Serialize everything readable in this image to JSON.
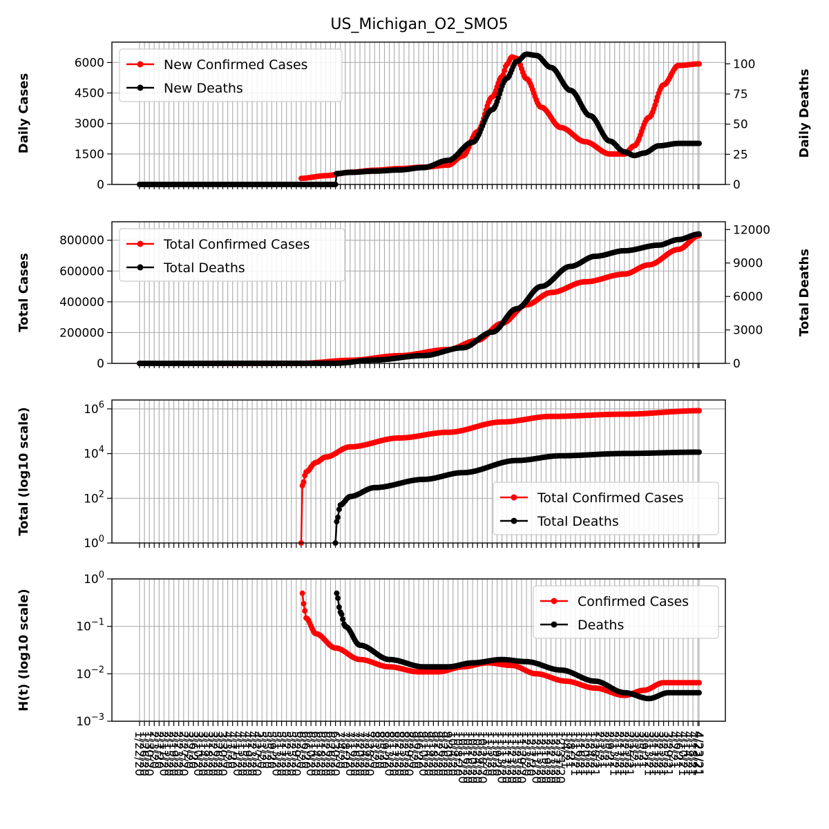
{
  "title": "US_Michigan_O2_SMO5",
  "colors": {
    "cases": "#ff0000",
    "deaths": "#000000",
    "grid": "#b0b0b0"
  },
  "x_dates": [
    "1/22/20",
    "1/26/20",
    "1/30/20",
    "2/3/20",
    "2/7/20",
    "2/11/20",
    "2/15/20",
    "2/19/20",
    "2/23/20",
    "2/27/20",
    "3/2/20",
    "3/6/20",
    "3/10/20",
    "3/14/20",
    "3/18/20",
    "3/22/20",
    "3/26/20",
    "3/30/20",
    "4/3/20",
    "4/7/20",
    "4/11/20",
    "4/15/20",
    "4/19/20",
    "4/23/20",
    "4/27/20",
    "5/1/20",
    "5/5/20",
    "5/9/20",
    "5/13/20",
    "5/17/20",
    "5/21/20",
    "5/25/20",
    "5/29/20",
    "6/2/20",
    "6/6/20",
    "6/10/20",
    "6/14/20",
    "6/18/20",
    "6/22/20",
    "6/26/20",
    "6/30/20",
    "7/4/20",
    "7/8/20",
    "7/12/20",
    "7/16/20",
    "7/20/20",
    "7/24/20",
    "7/28/20",
    "8/1/20",
    "8/5/20",
    "8/9/20",
    "8/13/20",
    "8/17/20",
    "8/21/20",
    "8/25/20",
    "8/29/20",
    "9/2/20",
    "9/6/20",
    "9/10/20",
    "9/14/20",
    "9/18/20",
    "9/22/20",
    "9/26/20",
    "9/30/20",
    "10/4/20",
    "10/8/20",
    "10/12/20",
    "10/16/20",
    "10/20/20",
    "10/24/20",
    "10/28/20",
    "11/1/20",
    "11/5/20",
    "11/9/20",
    "11/13/20",
    "11/17/20",
    "11/21/20",
    "11/25/20",
    "11/29/20",
    "12/3/20",
    "12/7/20",
    "12/11/20",
    "12/15/20",
    "12/19/20",
    "12/23/20",
    "12/27/20",
    "12/31/20",
    "1/4/21",
    "1/8/21",
    "1/12/21",
    "1/16/21",
    "1/20/21",
    "1/24/21",
    "1/28/21",
    "2/1/21",
    "2/5/21",
    "2/9/21",
    "2/13/21",
    "2/17/21",
    "2/21/21",
    "2/25/21",
    "3/1/21",
    "3/5/21",
    "3/9/21",
    "3/13/21",
    "3/17/21",
    "3/21/21",
    "3/25/21",
    "3/29/21",
    "4/2/21",
    "4/6/21",
    "4/10/21",
    "4/14/21",
    "4/18/21",
    "4/22/21",
    "4/23/21"
  ],
  "chart_data": [
    {
      "type": "line",
      "ylabel_left": "Daily Cases",
      "ylabel_right": "Daily Deaths",
      "left_ticks": [
        "0",
        "1500",
        "3000",
        "4500",
        "6000"
      ],
      "right_ticks": [
        "0",
        "25",
        "50",
        "75",
        "100"
      ],
      "ylim_left": [
        0,
        7000
      ],
      "ylim_right": [
        0,
        118
      ],
      "legend": [
        "New Confirmed Cases",
        "New Deaths"
      ],
      "legend_position": "top-left",
      "series": [
        {
          "name": "New Confirmed Cases",
          "axis": "left",
          "x": [
            "1/22/20",
            "6/2/20",
            "6/22/20",
            "7/12/20",
            "8/1/20",
            "8/21/20",
            "9/10/20",
            "9/30/20",
            "10/12/20",
            "10/24/20",
            "11/5/20",
            "11/13/20",
            "11/17/20",
            "11/21/20",
            "11/25/20",
            "12/3/20",
            "12/15/20",
            "12/31/20",
            "1/20/21",
            "2/9/21",
            "2/21/21",
            "3/1/21",
            "3/13/21",
            "3/25/21",
            "4/6/21",
            "4/23/21"
          ],
          "y": [
            null,
            300,
            430,
            600,
            700,
            780,
            850,
            950,
            1400,
            2600,
            4300,
            5300,
            5900,
            6270,
            6200,
            5200,
            3800,
            2800,
            2100,
            1500,
            1500,
            1900,
            3300,
            4900,
            5850,
            5930
          ]
        },
        {
          "name": "New Deaths",
          "axis": "right",
          "x": [
            "1/22/20",
            "6/30/20",
            "7/1/20",
            "7/12/20",
            "8/1/20",
            "8/21/20",
            "9/10/20",
            "9/30/20",
            "10/20/20",
            "11/5/20",
            "11/17/20",
            "11/25/20",
            "12/3/20",
            "12/11/20",
            "12/23/20",
            "1/8/21",
            "1/24/21",
            "2/9/21",
            "2/21/21",
            "3/1/21",
            "3/9/21",
            "3/21/21",
            "4/6/21",
            "4/23/21"
          ],
          "y": [
            0,
            0,
            9,
            10,
            11,
            12,
            14,
            20,
            35,
            62,
            88,
            102,
            108,
            107,
            97,
            78,
            57,
            36,
            27,
            24,
            26,
            32,
            34,
            34
          ]
        }
      ]
    },
    {
      "type": "line",
      "ylabel_left": "Total Cases",
      "ylabel_right": "Total Deaths",
      "left_ticks": [
        "0",
        "200000",
        "400000",
        "600000",
        "800000"
      ],
      "right_ticks": [
        "0",
        "3000",
        "6000",
        "9000",
        "12000"
      ],
      "ylim_left": [
        0,
        920000
      ],
      "ylim_right": [
        0,
        12700
      ],
      "legend": [
        "Total Confirmed Cases",
        "Total Deaths"
      ],
      "legend_position": "top-left",
      "series": [
        {
          "name": "Total Confirmed Cases",
          "axis": "left",
          "x": [
            "1/22/20",
            "6/2/20",
            "7/12/20",
            "8/21/20",
            "9/30/20",
            "10/24/20",
            "11/13/20",
            "12/3/20",
            "12/23/20",
            "1/20/21",
            "2/21/21",
            "3/13/21",
            "4/6/21",
            "4/23/21"
          ],
          "y": [
            0,
            300,
            20000,
            50000,
            90000,
            150000,
            260000,
            380000,
            460000,
            530000,
            580000,
            640000,
            740000,
            830000
          ]
        },
        {
          "name": "Total Deaths",
          "axis": "right",
          "x": [
            "1/22/20",
            "6/30/20",
            "8/1/20",
            "9/10/20",
            "10/12/20",
            "11/5/20",
            "11/25/20",
            "12/15/20",
            "1/8/21",
            "1/28/21",
            "2/21/21",
            "3/21/21",
            "4/6/21",
            "4/23/21"
          ],
          "y": [
            0,
            9,
            300,
            700,
            1400,
            2800,
            4900,
            6900,
            8700,
            9600,
            10100,
            10600,
            11100,
            11600
          ]
        }
      ]
    },
    {
      "type": "line",
      "ylabel": "Total (log10 scale)",
      "yscale": "log",
      "y_ticks": [
        "10^0",
        "10^2",
        "10^4",
        "10^6"
      ],
      "ylim": [
        1,
        2500000
      ],
      "legend": [
        "Total Confirmed Cases",
        "Total Deaths"
      ],
      "legend_position": "bottom-right",
      "series": [
        {
          "name": "Total Confirmed Cases",
          "x": [
            "6/2/20",
            "6/3/20",
            "6/6/20",
            "6/14/20",
            "6/22/20",
            "7/12/20",
            "8/21/20",
            "9/30/20",
            "11/13/20",
            "12/23/20",
            "2/21/21",
            "4/23/21"
          ],
          "y": [
            1,
            370,
            1500,
            4000,
            7000,
            20000,
            50000,
            90000,
            260000,
            460000,
            580000,
            830000
          ]
        },
        {
          "name": "Total Deaths",
          "x": [
            "6/30/20",
            "7/1/20",
            "7/4/20",
            "7/12/20",
            "8/1/20",
            "9/10/20",
            "10/12/20",
            "11/25/20",
            "12/31/20",
            "2/21/21",
            "4/23/21"
          ],
          "y": [
            1,
            9,
            50,
            120,
            300,
            700,
            1400,
            4900,
            8000,
            10100,
            11600
          ]
        }
      ]
    },
    {
      "type": "line",
      "ylabel": "H(t) (log10 scale)",
      "yscale": "log",
      "y_ticks": [
        "10^−3",
        "10^−2",
        "10^−1",
        "10^0"
      ],
      "ylim": [
        0.001,
        1
      ],
      "legend": [
        "Confirmed Cases",
        "Deaths"
      ],
      "legend_position": "top-right",
      "series": [
        {
          "name": "Confirmed Cases",
          "x": [
            "6/3/20",
            "6/4/20",
            "6/6/20",
            "6/14/20",
            "6/30/20",
            "7/20/20",
            "8/13/20",
            "9/6/20",
            "9/22/20",
            "10/12/20",
            "11/1/20",
            "11/21/20",
            "12/11/20",
            "1/4/21",
            "1/28/21",
            "2/21/21",
            "3/9/21",
            "3/25/21",
            "4/23/21"
          ],
          "y": [
            0.5,
            0.3,
            0.15,
            0.07,
            0.035,
            0.02,
            0.014,
            0.011,
            0.011,
            0.014,
            0.017,
            0.015,
            0.01,
            0.007,
            0.005,
            0.0035,
            0.0045,
            0.0065,
            0.0065
          ]
        },
        {
          "name": "Deaths",
          "x": [
            "7/1/20",
            "7/4/20",
            "7/8/20",
            "7/20/20",
            "8/13/20",
            "9/10/20",
            "9/30/20",
            "10/20/20",
            "11/13/20",
            "12/3/20",
            "12/31/20",
            "1/28/21",
            "2/21/21",
            "3/13/21",
            "3/29/21",
            "4/23/21"
          ],
          "y": [
            0.5,
            0.2,
            0.1,
            0.04,
            0.02,
            0.014,
            0.014,
            0.017,
            0.02,
            0.018,
            0.012,
            0.007,
            0.004,
            0.003,
            0.004,
            0.004
          ]
        }
      ]
    }
  ]
}
